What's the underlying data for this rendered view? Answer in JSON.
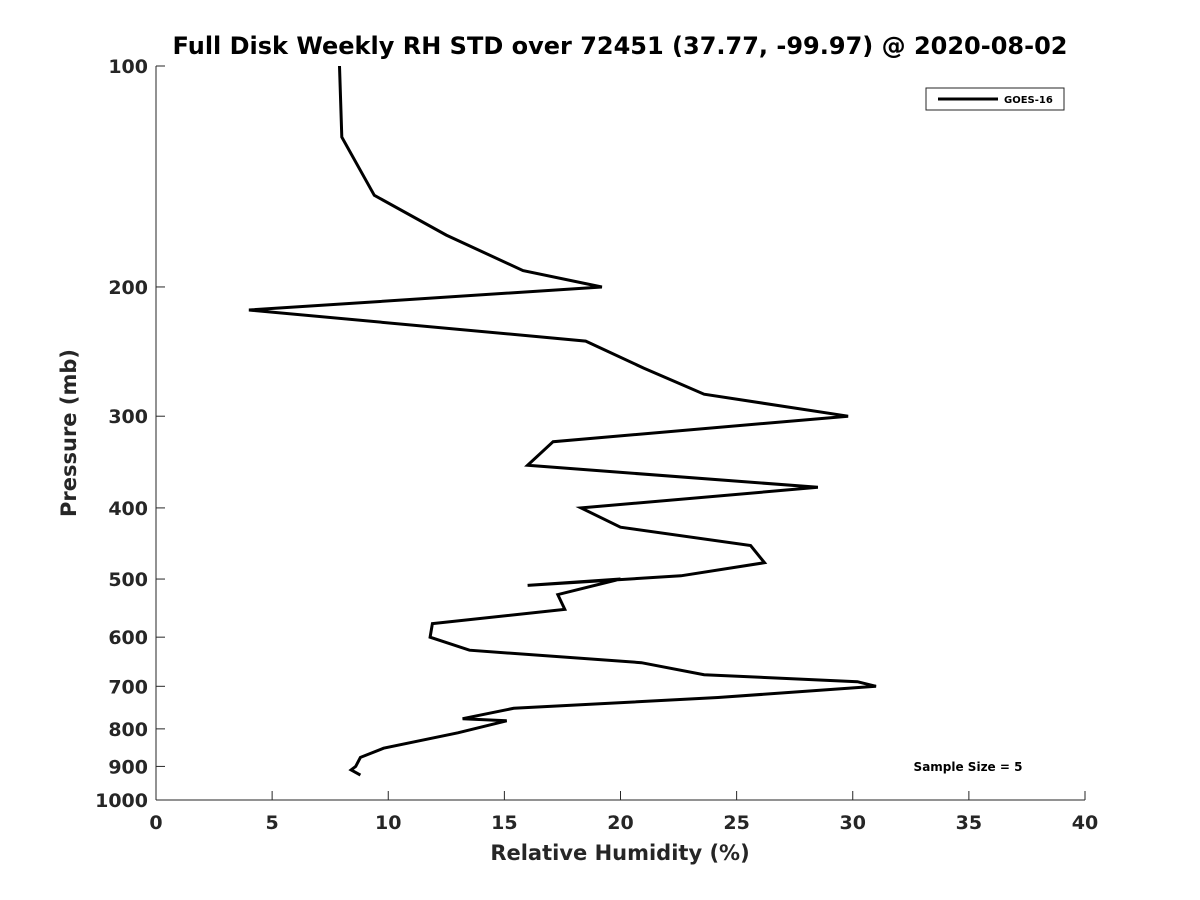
{
  "chart_data": {
    "type": "line",
    "title": "Full Disk Weekly RH STD over 72451 (37.77, -99.97) @ 2020-08-02",
    "xlabel": "Relative Humidity (%)",
    "ylabel": "Pressure (mb)",
    "xlim": [
      0,
      40
    ],
    "ylim": [
      100,
      1000
    ],
    "yscale": "log",
    "y_reversed": true,
    "x_ticks": [
      "0",
      "5",
      "10",
      "15",
      "20",
      "25",
      "30",
      "35",
      "40"
    ],
    "y_ticks": [
      "100",
      "200",
      "300",
      "400",
      "500",
      "600",
      "700",
      "800",
      "900",
      "1000"
    ],
    "legend_position": "top-right",
    "grid": false,
    "annotation": "Sample Size = 5",
    "series": [
      {
        "name": "GOES-16",
        "color": "#000000",
        "points": [
          {
            "x": 7.9,
            "y": 100
          },
          {
            "x": 8.0,
            "y": 125
          },
          {
            "x": 9.4,
            "y": 150
          },
          {
            "x": 12.5,
            "y": 170
          },
          {
            "x": 15.8,
            "y": 190
          },
          {
            "x": 19.2,
            "y": 200
          },
          {
            "x": 4.0,
            "y": 215
          },
          {
            "x": 18.5,
            "y": 237
          },
          {
            "x": 21.0,
            "y": 258
          },
          {
            "x": 23.6,
            "y": 280
          },
          {
            "x": 29.8,
            "y": 300
          },
          {
            "x": 17.1,
            "y": 325
          },
          {
            "x": 16.0,
            "y": 350
          },
          {
            "x": 28.5,
            "y": 375
          },
          {
            "x": 18.3,
            "y": 400
          },
          {
            "x": 20.0,
            "y": 425
          },
          {
            "x": 25.6,
            "y": 450
          },
          {
            "x": 26.2,
            "y": 475
          },
          {
            "x": 22.6,
            "y": 495
          },
          {
            "x": 16.0,
            "y": 510
          },
          {
            "x": 20.0,
            "y": 500
          },
          {
            "x": 17.3,
            "y": 525
          },
          {
            "x": 17.6,
            "y": 550
          },
          {
            "x": 11.9,
            "y": 575
          },
          {
            "x": 11.8,
            "y": 600
          },
          {
            "x": 13.5,
            "y": 625
          },
          {
            "x": 20.9,
            "y": 650
          },
          {
            "x": 23.6,
            "y": 675
          },
          {
            "x": 30.2,
            "y": 690
          },
          {
            "x": 31.0,
            "y": 700
          },
          {
            "x": 24.2,
            "y": 725
          },
          {
            "x": 15.4,
            "y": 750
          },
          {
            "x": 13.2,
            "y": 775
          },
          {
            "x": 15.1,
            "y": 780
          },
          {
            "x": 13.0,
            "y": 810
          },
          {
            "x": 9.8,
            "y": 850
          },
          {
            "x": 8.8,
            "y": 875
          },
          {
            "x": 8.6,
            "y": 900
          },
          {
            "x": 8.4,
            "y": 910
          },
          {
            "x": 8.8,
            "y": 925
          }
        ]
      }
    ]
  }
}
